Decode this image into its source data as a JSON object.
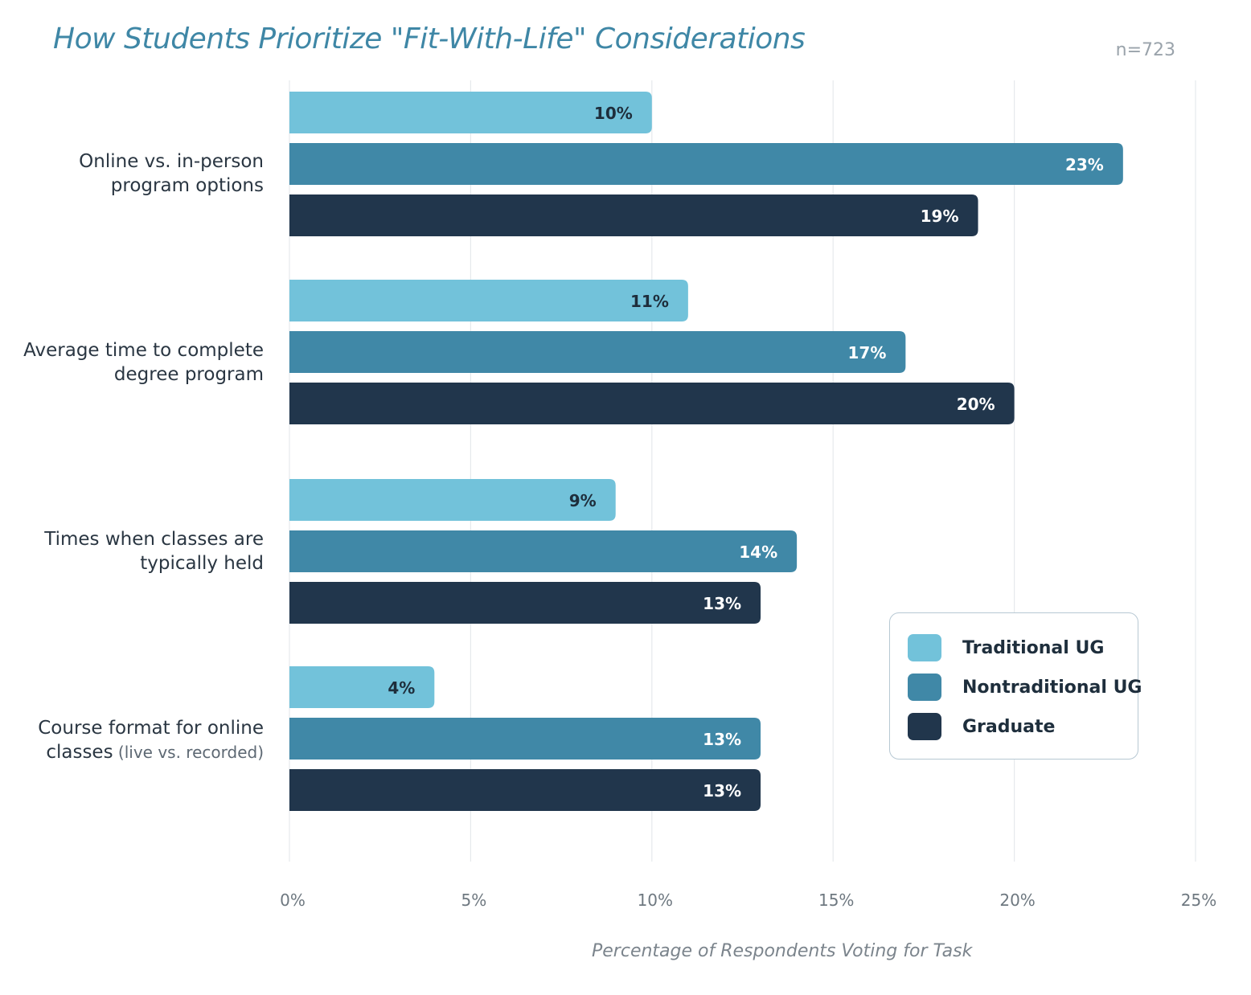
{
  "header": {
    "title": "How Students Prioritize \"Fit-With-Life\" Considerations",
    "sample_size": "n=723"
  },
  "colors": {
    "title": "#3f87a6",
    "traditional_ug": "#72c2da",
    "nontraditional_ug": "#4088a7",
    "graduate": "#21364c",
    "grid": "#e6e9ec"
  },
  "chart_data": {
    "type": "bar",
    "orientation": "horizontal",
    "title": "How Students Prioritize \"Fit-With-Life\" Considerations",
    "xlabel": "Percentage of Respondents Voting for Task",
    "ylabel": "",
    "xlim": [
      0,
      25
    ],
    "x_ticks": [
      "0%",
      "5%",
      "10%",
      "15%",
      "20%",
      "25%"
    ],
    "x_tick_values": [
      0,
      5,
      10,
      15,
      20,
      25
    ],
    "grid": true,
    "legend_position": "lower-right",
    "categories": [
      {
        "line1": "Online vs. in-person",
        "line2": "program options",
        "note": ""
      },
      {
        "line1": "Average time to complete",
        "line2": "degree program",
        "note": ""
      },
      {
        "line1": "Times when classes are",
        "line2": "typically held",
        "note": ""
      },
      {
        "line1": "Course format for online",
        "line2": "classes",
        "note": "(live vs. recorded)"
      }
    ],
    "series": [
      {
        "name": "Traditional UG",
        "values": [
          10,
          11,
          9,
          4
        ],
        "labels": [
          "10%",
          "11%",
          "9%",
          "4%"
        ]
      },
      {
        "name": "Nontraditional UG",
        "values": [
          23,
          17,
          14,
          13
        ],
        "labels": [
          "23%",
          "17%",
          "14%",
          "13%"
        ]
      },
      {
        "name": "Graduate",
        "values": [
          19,
          20,
          13,
          13
        ],
        "labels": [
          "19%",
          "20%",
          "13%",
          "13%"
        ]
      }
    ]
  },
  "legend": {
    "items": [
      {
        "label": "Traditional UG"
      },
      {
        "label": "Nontraditional UG"
      },
      {
        "label": "Graduate"
      }
    ]
  },
  "axis": {
    "xlabel": "Percentage of Respondents Voting for Task"
  }
}
